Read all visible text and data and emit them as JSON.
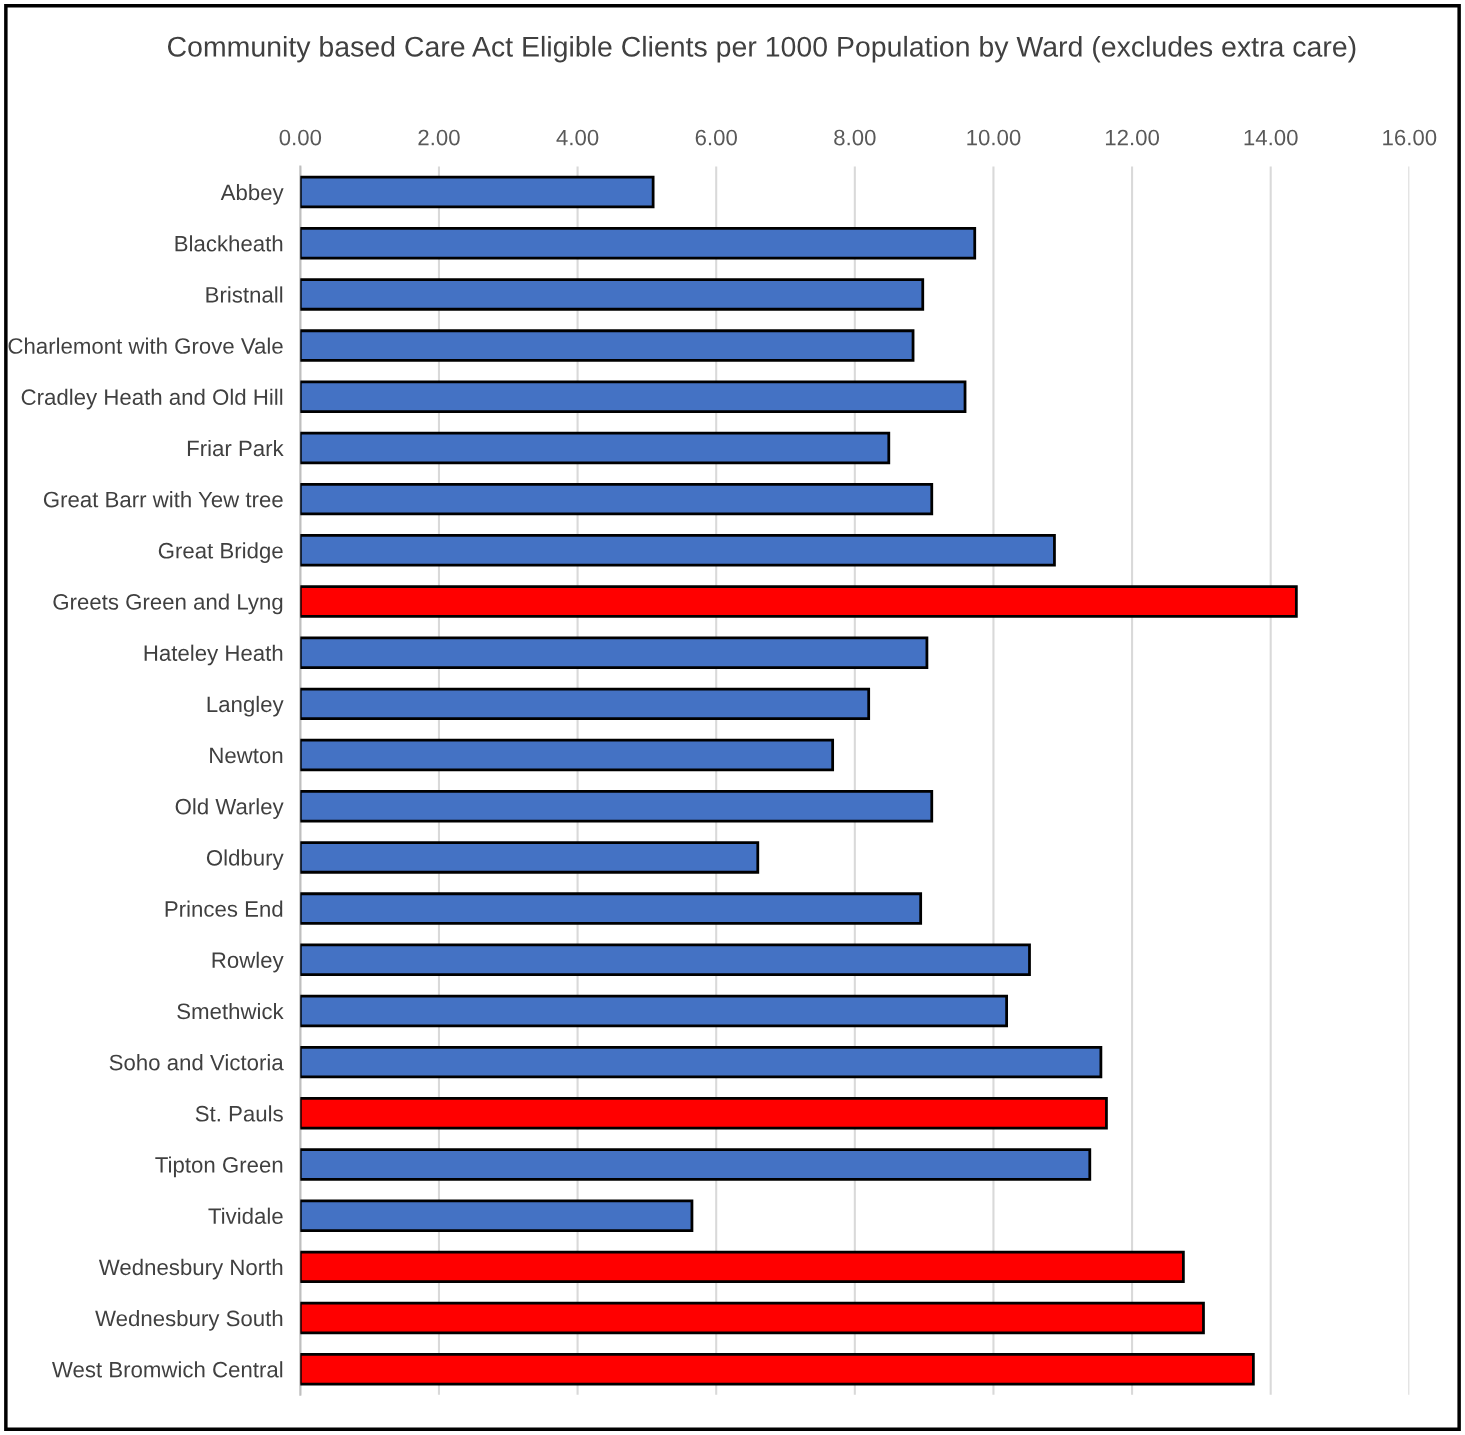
{
  "chart_data": {
    "type": "bar",
    "orientation": "horizontal",
    "title": "Community based Care Act Eligible Clients per 1000 Population by Ward (excludes extra care)",
    "categories": [
      "Abbey",
      "Blackheath",
      "Bristnall",
      "Charlemont with Grove Vale",
      "Cradley Heath and Old Hill",
      "Friar Park",
      "Great Barr with Yew tree",
      "Great Bridge",
      "Greets Green and Lyng",
      "Hateley Heath",
      "Langley",
      "Newton",
      "Old Warley",
      "Oldbury",
      "Princes End",
      "Rowley",
      "Smethwick",
      "Soho and Victoria",
      "St. Pauls",
      "Tipton Green",
      "Tividale",
      "Wednesbury North",
      "Wednesbury South",
      "West Bromwich Central"
    ],
    "values": [
      5.09,
      9.73,
      8.98,
      8.84,
      9.59,
      8.49,
      9.11,
      10.88,
      14.37,
      9.04,
      8.2,
      7.68,
      9.11,
      6.6,
      8.95,
      10.52,
      10.19,
      11.55,
      11.63,
      11.39,
      5.65,
      12.74,
      13.03,
      13.75
    ],
    "colors": [
      "#4472c4",
      "#4472c4",
      "#4472c4",
      "#4472c4",
      "#4472c4",
      "#4472c4",
      "#4472c4",
      "#4472c4",
      "#ff0000",
      "#4472c4",
      "#4472c4",
      "#4472c4",
      "#4472c4",
      "#4472c4",
      "#4472c4",
      "#4472c4",
      "#4472c4",
      "#4472c4",
      "#ff0000",
      "#4472c4",
      "#4472c4",
      "#ff0000",
      "#ff0000",
      "#ff0000"
    ],
    "xlim": [
      0,
      16
    ],
    "xticks": [
      {
        "value": 0,
        "label": "0.00"
      },
      {
        "value": 2,
        "label": "2.00"
      },
      {
        "value": 4,
        "label": "4.00"
      },
      {
        "value": 6,
        "label": "6.00"
      },
      {
        "value": 8,
        "label": "8.00"
      },
      {
        "value": 10,
        "label": "10.00"
      },
      {
        "value": 12,
        "label": "12.00"
      },
      {
        "value": 14,
        "label": "14.00"
      },
      {
        "value": 16,
        "label": "16.00"
      }
    ],
    "grid": "x"
  }
}
